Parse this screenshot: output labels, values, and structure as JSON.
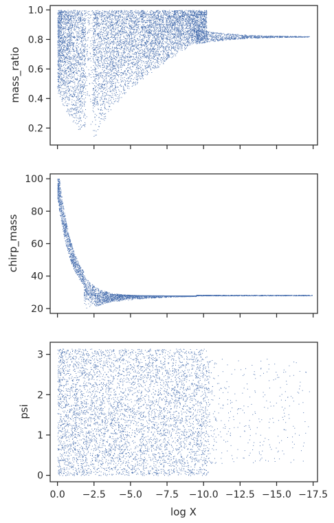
{
  "chart_data": [
    {
      "type": "scatter",
      "panel": "top",
      "ylabel": "mass_ratio",
      "xlabel": "",
      "xlim": [
        0.5,
        -17.8
      ],
      "ylim": [
        0.085,
        1.03
      ],
      "xticks": [
        0.0,
        -2.5,
        -5.0,
        -7.5,
        -10.0,
        -12.5,
        -15.0,
        -17.5
      ],
      "xtick_labels_visible": false,
      "yticks": [
        0.2,
        0.4,
        0.6,
        0.8,
        1.0
      ],
      "ytick_labels": [
        "0.2",
        "0.4",
        "0.6",
        "0.8",
        "1.0"
      ],
      "color": "#4c72b0",
      "description_points": [
        {
          "x": 0.0,
          "y_range": [
            0.2,
            1.0
          ]
        },
        {
          "x": -1.9,
          "y_range": [
            0.14,
            1.0
          ]
        },
        {
          "x": -2.9,
          "y_range": [
            0.14,
            1.0
          ]
        },
        {
          "x": -7.5,
          "y_range": [
            0.72,
            1.0
          ]
        },
        {
          "x": -9.5,
          "y_range": [
            0.8,
            0.88
          ]
        },
        {
          "x": -12.5,
          "y_range": [
            0.81,
            0.84
          ]
        },
        {
          "x": -17.0,
          "y_range": [
            0.815,
            0.825
          ]
        }
      ]
    },
    {
      "type": "scatter",
      "panel": "middle",
      "ylabel": "chirp_mass",
      "xlabel": "",
      "xlim": [
        0.5,
        -17.8
      ],
      "ylim": [
        17,
        103
      ],
      "xticks": [
        0.0,
        -2.5,
        -5.0,
        -7.5,
        -10.0,
        -12.5,
        -15.0,
        -17.5
      ],
      "xtick_labels_visible": false,
      "yticks": [
        20,
        40,
        60,
        80,
        100
      ],
      "ytick_labels": [
        "20",
        "40",
        "60",
        "80",
        "100"
      ],
      "color": "#4c72b0",
      "description_points": [
        {
          "x": 0.0,
          "y_range": [
            90,
            100
          ]
        },
        {
          "x": -1.0,
          "y_range": [
            55,
            100
          ]
        },
        {
          "x": -2.0,
          "y_range": [
            33,
            45
          ]
        },
        {
          "x": -3.0,
          "y_range": [
            21,
            34
          ]
        },
        {
          "x": -6.0,
          "y_range": [
            26,
            30
          ]
        },
        {
          "x": -10.0,
          "y_range": [
            27.5,
            29
          ]
        },
        {
          "x": -17.0,
          "y_range": [
            28,
            28.5
          ]
        }
      ]
    },
    {
      "type": "scatter",
      "panel": "bottom",
      "ylabel": "psi",
      "xlabel": "log X",
      "xlim": [
        0.5,
        -17.8
      ],
      "ylim": [
        -0.16,
        3.3
      ],
      "xticks": [
        0.0,
        -2.5,
        -5.0,
        -7.5,
        -10.0,
        -12.5,
        -15.0,
        -17.5
      ],
      "xtick_labels": [
        "0.0",
        "−2.5",
        "−5.0",
        "−7.5",
        "−10.0",
        "−12.5",
        "−15.0",
        "−17.5"
      ],
      "yticks": [
        0,
        1,
        2,
        3
      ],
      "ytick_labels": [
        "0",
        "1",
        "2",
        "3"
      ],
      "color": "#4c72b0",
      "description_points": [
        {
          "x": 0.0,
          "y_range": [
            0.0,
            3.14
          ]
        },
        {
          "x": -10.0,
          "y_range": [
            0.0,
            3.14
          ]
        },
        {
          "x": -16.5,
          "y_range": [
            0.5,
            2.5
          ]
        }
      ]
    }
  ]
}
